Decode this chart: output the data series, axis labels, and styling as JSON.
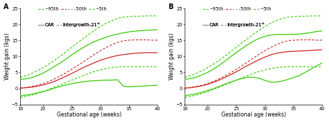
{
  "x": [
    16,
    17,
    18,
    19,
    20,
    21,
    22,
    23,
    24,
    25,
    26,
    27,
    28,
    29,
    30,
    31,
    32,
    33,
    34,
    35,
    36,
    37,
    38,
    39,
    40
  ],
  "panel_A": {
    "car_95th": [
      2.8,
      3.0,
      3.4,
      4.0,
      4.8,
      5.8,
      6.9,
      8.0,
      9.2,
      10.5,
      11.7,
      12.8,
      13.8,
      14.7,
      15.4,
      16.0,
      16.6,
      17.0,
      17.4,
      17.7,
      17.9,
      18.1,
      18.2,
      18.3,
      18.4
    ],
    "car_50th": [
      0.1,
      0.2,
      0.4,
      0.7,
      1.1,
      1.6,
      2.2,
      3.0,
      3.8,
      4.7,
      5.6,
      6.5,
      7.3,
      8.1,
      8.8,
      9.4,
      9.9,
      10.3,
      10.6,
      10.8,
      11.0,
      11.1,
      11.2,
      11.2,
      11.2
    ],
    "car_5th": [
      -2.3,
      -2.1,
      -1.8,
      -1.4,
      -1.0,
      -0.5,
      0.1,
      0.6,
      1.1,
      1.5,
      1.8,
      2.1,
      2.3,
      2.4,
      2.5,
      2.6,
      2.6,
      2.7,
      0.7,
      0.5,
      0.6,
      0.7,
      0.8,
      0.9,
      1.0
    ],
    "ig_95th": [
      3.5,
      4.0,
      4.7,
      5.5,
      6.5,
      7.6,
      8.8,
      10.1,
      11.5,
      12.9,
      14.3,
      15.6,
      17.0,
      18.2,
      19.4,
      20.4,
      21.2,
      21.9,
      22.3,
      22.5,
      22.6,
      22.6,
      22.7,
      22.7,
      22.7
    ],
    "ig_50th": [
      0.1,
      0.3,
      0.6,
      1.0,
      1.5,
      2.2,
      3.0,
      3.9,
      4.9,
      6.0,
      7.1,
      8.3,
      9.5,
      10.7,
      11.8,
      12.8,
      13.7,
      14.4,
      14.9,
      15.1,
      15.2,
      15.2,
      15.2,
      15.1,
      15.1
    ],
    "ig_5th": [
      -2.8,
      -2.5,
      -2.1,
      -1.6,
      -1.0,
      -0.3,
      0.4,
      1.1,
      1.8,
      2.6,
      3.3,
      4.0,
      4.7,
      5.3,
      5.8,
      6.2,
      6.5,
      6.7,
      6.8,
      6.8,
      6.8,
      6.8,
      6.8,
      6.8,
      6.8
    ]
  },
  "panel_B": {
    "car_95th": [
      2.8,
      3.1,
      3.5,
      4.2,
      5.0,
      6.0,
      7.2,
      8.5,
      9.9,
      11.2,
      12.5,
      13.7,
      14.8,
      15.7,
      16.3,
      16.7,
      16.9,
      16.9,
      16.9,
      16.9,
      17.0,
      17.2,
      17.5,
      17.8,
      18.0
    ],
    "car_50th": [
      0.1,
      0.2,
      0.5,
      0.8,
      1.3,
      1.9,
      2.6,
      3.4,
      4.3,
      5.2,
      6.2,
      7.2,
      8.1,
      9.0,
      9.8,
      10.5,
      11.0,
      11.3,
      11.5,
      11.6,
      11.7,
      11.8,
      11.9,
      12.0,
      12.1
    ],
    "car_5th": [
      -2.3,
      -2.0,
      -1.7,
      -1.2,
      -0.7,
      -0.1,
      0.6,
      1.3,
      2.0,
      2.6,
      3.1,
      3.5,
      3.5,
      3.2,
      2.5,
      2.0,
      2.0,
      2.3,
      2.8,
      3.4,
      4.0,
      5.0,
      6.0,
      7.0,
      8.0
    ],
    "ig_95th": [
      3.5,
      4.0,
      4.7,
      5.5,
      6.5,
      7.6,
      8.8,
      10.1,
      11.5,
      12.9,
      14.3,
      15.6,
      17.0,
      18.2,
      19.4,
      20.4,
      21.2,
      21.9,
      22.3,
      22.5,
      22.6,
      22.6,
      22.7,
      22.7,
      22.7
    ],
    "ig_50th": [
      0.1,
      0.3,
      0.6,
      1.0,
      1.5,
      2.2,
      3.0,
      3.9,
      4.9,
      6.0,
      7.1,
      8.3,
      9.5,
      10.7,
      11.8,
      12.8,
      13.7,
      14.4,
      14.9,
      15.1,
      15.2,
      15.2,
      15.2,
      15.1,
      15.1
    ],
    "ig_5th": [
      -2.8,
      -2.5,
      -2.1,
      -1.6,
      -1.0,
      -0.3,
      0.4,
      1.1,
      1.8,
      2.6,
      3.3,
      4.0,
      4.7,
      5.3,
      5.8,
      6.2,
      6.5,
      6.7,
      6.8,
      6.8,
      6.8,
      6.8,
      6.8,
      6.8,
      6.8
    ]
  },
  "xlim": [
    16,
    40
  ],
  "ylim": [
    -5,
    25
  ],
  "yticks": [
    -5,
    0,
    5,
    10,
    15,
    20,
    25
  ],
  "xticks": [
    16,
    20,
    25,
    30,
    35,
    40
  ],
  "green_color": "#33cc00",
  "red_color": "#cc2222",
  "gray_color": "#999999",
  "xlabel": "Gestational age (weeks)",
  "ylabel": "Weight gain (kgs)",
  "bg_color": "#ffffff",
  "legend_fontsize": 4.8,
  "axis_fontsize": 5.5,
  "tick_fontsize": 4.8,
  "label_A": "A",
  "label_B": "B",
  "legend1_labels": [
    "~95th",
    "- - -50th",
    "~5th"
  ],
  "legend2_label_car": "CAR",
  "legend2_label_ig": "Intergrowth-21ˢᵗ"
}
